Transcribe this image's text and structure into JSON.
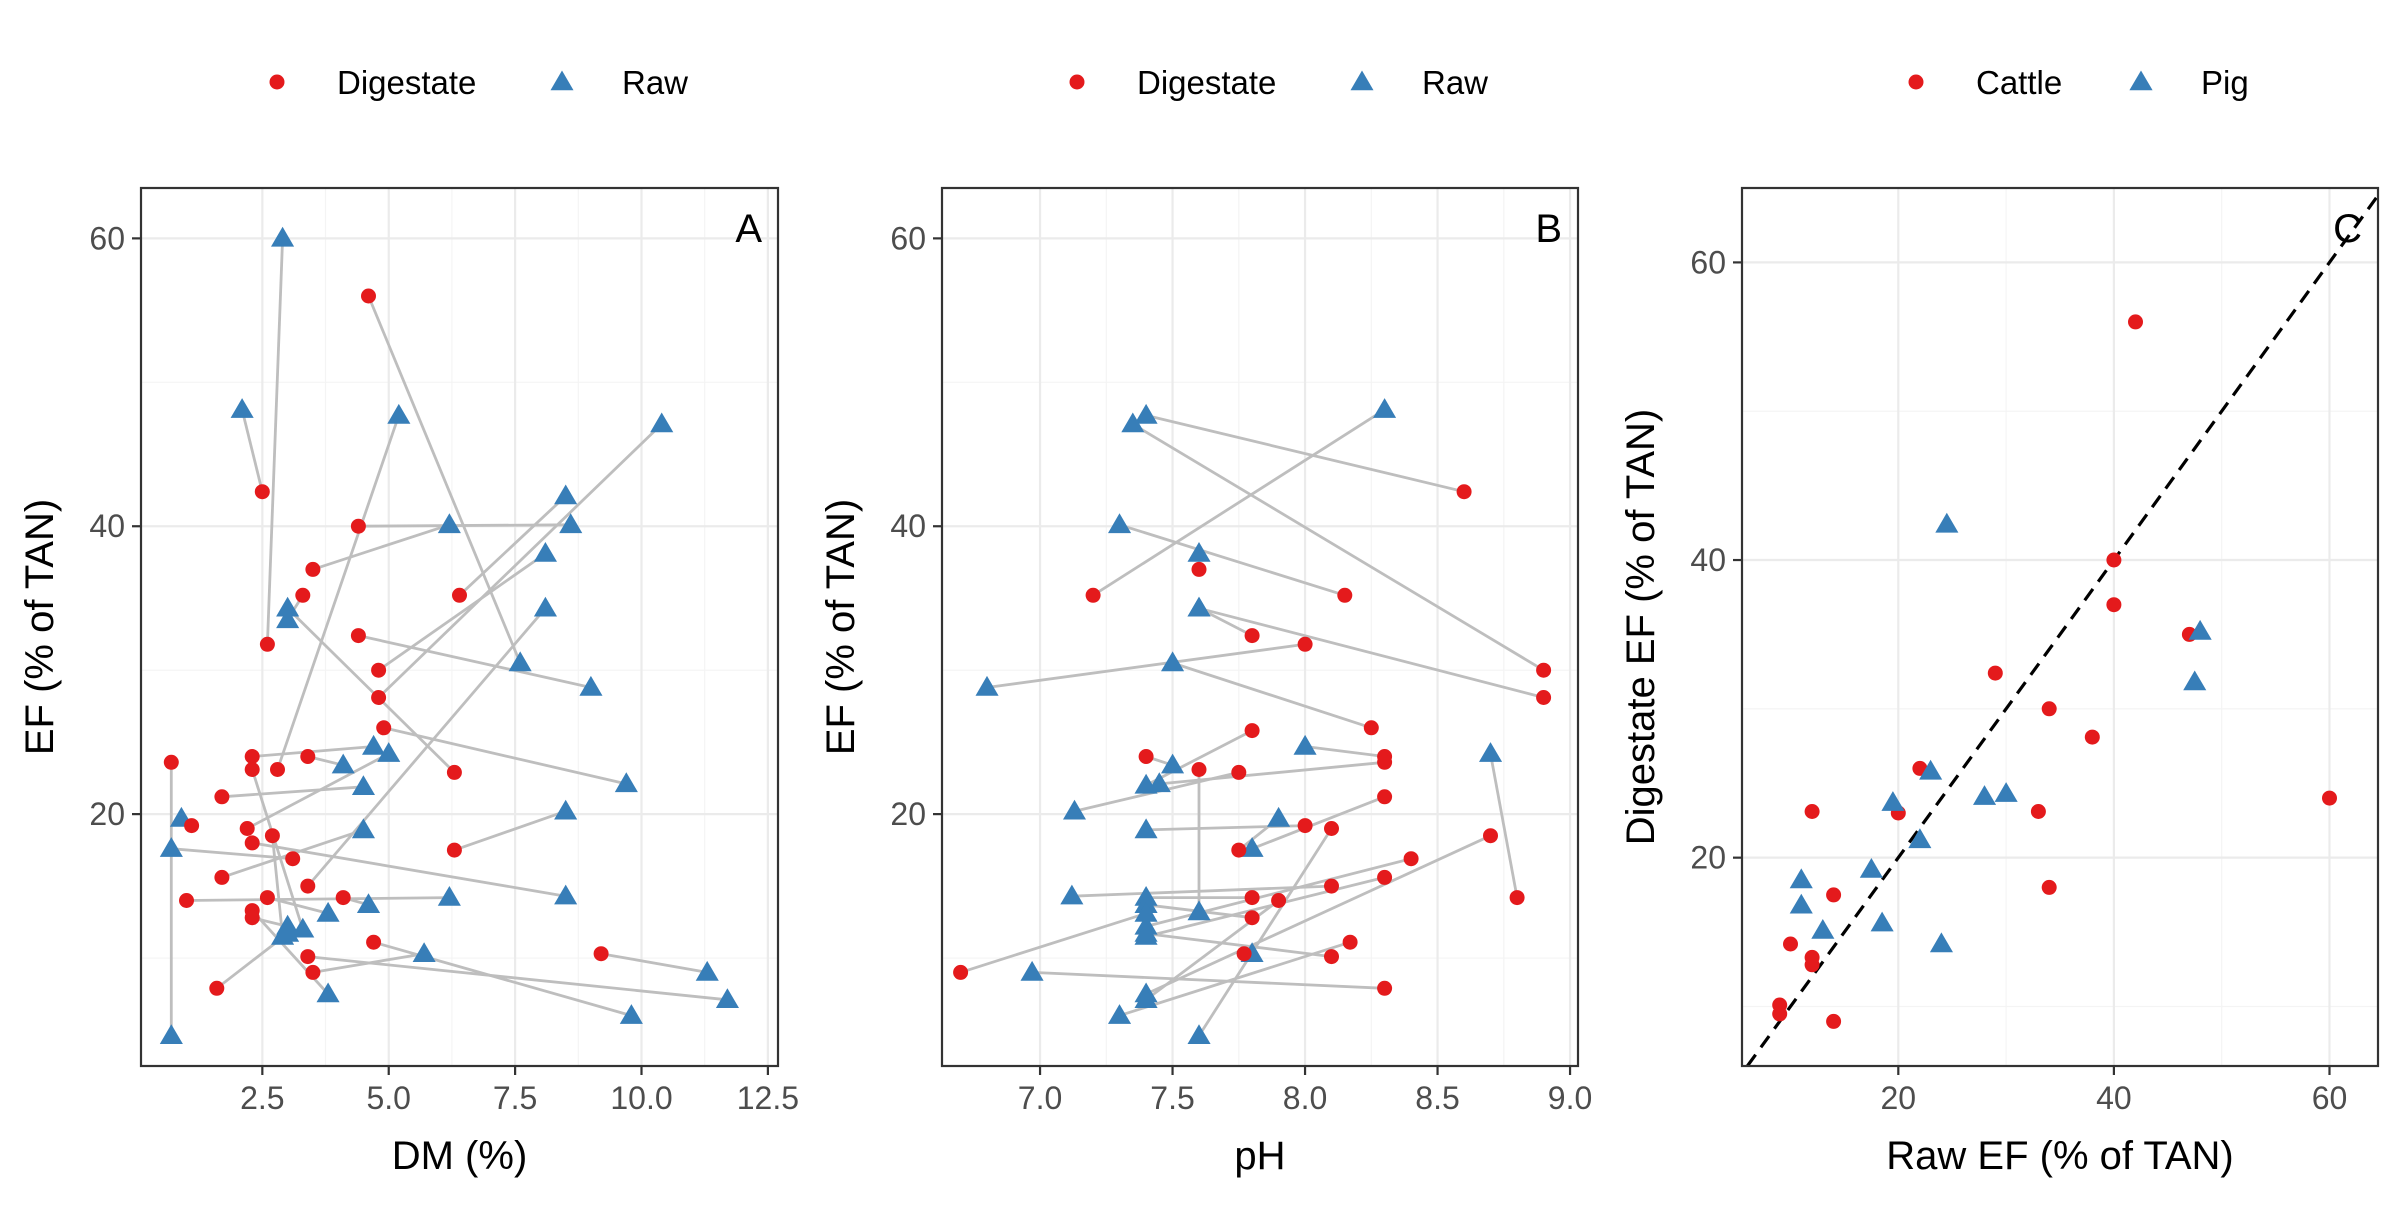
{
  "colors": {
    "red": "#e41a1c",
    "blue": "#377eb8",
    "line": "#bebebe"
  },
  "panels": [
    {
      "tag": "A",
      "xlabel": "DM (%)",
      "ylabel": "EF (% of TAN)",
      "xlim": [
        0.1,
        12.7
      ],
      "ylim": [
        2.5,
        63.5
      ],
      "xticks": [
        2.5,
        5.0,
        7.5,
        10.0,
        12.5
      ],
      "xtick_labels": [
        "2.5",
        "5.0",
        "7.5",
        "10.0",
        "12.5"
      ],
      "yticks": [
        20,
        40,
        60
      ],
      "ytick_labels": [
        "20",
        "40",
        "60"
      ],
      "legend": [
        {
          "label": "Digestate",
          "shape": "circle"
        },
        {
          "label": "Raw",
          "shape": "triangle"
        }
      ]
    },
    {
      "tag": "B",
      "xlabel": "pH",
      "ylabel": "EF (% of TAN)",
      "xlim": [
        6.63,
        9.03
      ],
      "ylim": [
        2.5,
        63.5
      ],
      "xticks": [
        7.0,
        7.5,
        8.0,
        8.5,
        9.0
      ],
      "xtick_labels": [
        "7.0",
        "7.5",
        "8.0",
        "8.5",
        "9.0"
      ],
      "yticks": [
        20,
        40,
        60
      ],
      "ytick_labels": [
        "20",
        "40",
        "60"
      ],
      "legend": [
        {
          "label": "Digestate",
          "shape": "circle"
        },
        {
          "label": "Raw",
          "shape": "triangle"
        }
      ]
    },
    {
      "tag": "C",
      "xlabel": "Raw EF (% of TAN)",
      "ylabel": "Digestate EF (% of TAN)",
      "xlim": [
        5.5,
        64.5
      ],
      "ylim": [
        6.0,
        65.0
      ],
      "xticks": [
        20,
        40,
        60
      ],
      "xtick_labels": [
        "20",
        "40",
        "60"
      ],
      "yticks": [
        20,
        40,
        60
      ],
      "ytick_labels": [
        "20",
        "40",
        "60"
      ],
      "legend": [
        {
          "label": "Cattle",
          "shape": "circle"
        },
        {
          "label": "Pig",
          "shape": "triangle"
        }
      ]
    }
  ],
  "chart_data": [
    {
      "type": "scatter",
      "panel": "A",
      "xlabel": "DM (%)",
      "ylabel": "EF (% of TAN)",
      "series": [
        {
          "name": "Digestate"
        },
        {
          "name": "Raw"
        }
      ],
      "pairs": [
        {
          "digestate": [
            4.6,
            56.0
          ],
          "raw": [
            7.6,
            30.5
          ]
        },
        {
          "digestate": [
            2.5,
            42.4
          ],
          "raw": [
            2.1,
            48.1
          ]
        },
        {
          "digestate": [
            4.4,
            40.0
          ],
          "raw": [
            8.6,
            40.1
          ]
        },
        {
          "digestate": [
            3.5,
            37.0
          ],
          "raw": [
            6.2,
            40.1
          ]
        },
        {
          "digestate": [
            6.4,
            35.2
          ],
          "raw": [
            8.5,
            42.1
          ]
        },
        {
          "digestate": [
            3.3,
            35.2
          ],
          "raw": [
            3.0,
            33.5
          ]
        },
        {
          "digestate": [
            4.4,
            32.4
          ],
          "raw": [
            9.0,
            28.8
          ]
        },
        {
          "digestate": [
            2.6,
            31.8
          ],
          "raw": [
            2.9,
            60.0
          ]
        },
        {
          "digestate": [
            4.8,
            30.0
          ],
          "raw": [
            8.1,
            38.1
          ]
        },
        {
          "digestate": [
            4.8,
            28.1
          ],
          "raw": [
            10.4,
            47.1
          ]
        },
        {
          "digestate": [
            4.9,
            26.0
          ],
          "raw": [
            9.7,
            22.1
          ]
        },
        {
          "digestate": [
            2.3,
            24.0
          ],
          "raw": [
            4.7,
            24.7
          ]
        },
        {
          "digestate": [
            3.4,
            24.0
          ],
          "raw": [
            4.1,
            23.4
          ]
        },
        {
          "digestate": [
            0.7,
            23.6
          ],
          "raw": [
            0.7,
            4.6
          ]
        },
        {
          "digestate": [
            2.3,
            23.1
          ],
          "raw": [
            3.3,
            12.0
          ]
        },
        {
          "digestate": [
            2.8,
            23.1
          ],
          "raw": [
            5.2,
            47.7
          ]
        },
        {
          "digestate": [
            6.3,
            22.9
          ],
          "raw": [
            3.0,
            34.3
          ]
        },
        {
          "digestate": [
            1.7,
            21.2
          ],
          "raw": [
            4.5,
            21.9
          ]
        },
        {
          "digestate": [
            2.2,
            19.0
          ],
          "raw": [
            5.0,
            24.2
          ]
        },
        {
          "digestate": [
            1.1,
            19.2
          ],
          "raw": [
            0.9,
            19.7
          ]
        },
        {
          "digestate": [
            2.7,
            18.5
          ],
          "raw": [
            2.9,
            11.5
          ]
        },
        {
          "digestate": [
            2.3,
            18.0
          ],
          "raw": [
            8.5,
            14.3
          ]
        },
        {
          "digestate": [
            3.1,
            16.9
          ],
          "raw": [
            0.7,
            17.6
          ]
        },
        {
          "digestate": [
            6.3,
            17.5
          ],
          "raw": [
            8.5,
            20.2
          ]
        },
        {
          "digestate": [
            1.7,
            15.6
          ],
          "raw": [
            4.5,
            18.9
          ]
        },
        {
          "digestate": [
            3.4,
            15.0
          ],
          "raw": [
            8.1,
            34.3
          ]
        },
        {
          "digestate": [
            2.6,
            14.2
          ],
          "raw": [
            3.8,
            13.1
          ]
        },
        {
          "digestate": [
            4.1,
            14.2
          ],
          "raw": [
            4.6,
            13.7
          ]
        },
        {
          "digestate": [
            1.0,
            14.0
          ],
          "raw": [
            6.2,
            14.2
          ]
        },
        {
          "digestate": [
            2.3,
            13.3
          ],
          "raw": [
            3.8,
            7.5
          ]
        },
        {
          "digestate": [
            2.3,
            12.8
          ],
          "raw": [
            3.0,
            12.2
          ]
        },
        {
          "digestate": [
            4.7,
            11.1
          ],
          "raw": [
            9.8,
            6.0
          ]
        },
        {
          "digestate": [
            3.4,
            10.1
          ],
          "raw": [
            11.7,
            7.1
          ]
        },
        {
          "digestate": [
            9.2,
            10.3
          ],
          "raw": [
            11.3,
            9.0
          ]
        },
        {
          "digestate": [
            3.5,
            9.0
          ],
          "raw": [
            5.7,
            10.3
          ]
        },
        {
          "digestate": [
            1.6,
            7.9
          ],
          "raw": [
            3.0,
            11.7
          ]
        }
      ]
    },
    {
      "type": "scatter",
      "panel": "B",
      "xlabel": "pH",
      "ylabel": "EF (% of TAN)",
      "series": [
        {
          "name": "Digestate"
        },
        {
          "name": "Raw"
        }
      ],
      "pairs": [
        {
          "digestate": [
            8.6,
            42.4
          ],
          "raw": [
            7.4,
            47.7
          ]
        },
        {
          "digestate": [
            7.2,
            35.2
          ],
          "raw": [
            8.3,
            48.1
          ]
        },
        {
          "digestate": [
            8.15,
            35.2
          ],
          "raw": [
            7.3,
            40.1
          ]
        },
        {
          "digestate": [
            7.6,
            37.0
          ],
          "raw": [
            7.6,
            38.1
          ]
        },
        {
          "digestate": [
            8.9,
            30.0
          ],
          "raw": [
            7.35,
            47.1
          ]
        },
        {
          "digestate": [
            8.9,
            28.1
          ],
          "raw": [
            7.6,
            34.3
          ]
        },
        {
          "digestate": [
            8.0,
            31.8
          ],
          "raw": [
            6.8,
            28.8
          ]
        },
        {
          "digestate": [
            7.8,
            32.4
          ],
          "raw": [
            7.6,
            34.3
          ]
        },
        {
          "digestate": [
            8.25,
            26.0
          ],
          "raw": [
            7.5,
            30.5
          ]
        },
        {
          "digestate": [
            8.3,
            24.0
          ],
          "raw": [
            8.0,
            24.7
          ]
        },
        {
          "digestate": [
            8.3,
            23.6
          ],
          "raw": [
            7.45,
            22.1
          ]
        },
        {
          "digestate": [
            7.8,
            25.8
          ],
          "raw": [
            7.4,
            22.0
          ]
        },
        {
          "digestate": [
            7.4,
            24.0
          ],
          "raw": [
            7.5,
            23.4
          ]
        },
        {
          "digestate": [
            8.3,
            21.2
          ],
          "raw": [
            7.8,
            17.6
          ]
        },
        {
          "digestate": [
            7.6,
            23.1
          ],
          "raw": [
            7.6,
            13.2
          ]
        },
        {
          "digestate": [
            7.75,
            22.9
          ],
          "raw": [
            7.13,
            20.2
          ]
        },
        {
          "digestate": [
            8.0,
            19.2
          ],
          "raw": [
            7.4,
            18.9
          ]
        },
        {
          "digestate": [
            8.1,
            19.0
          ],
          "raw": [
            7.6,
            4.6
          ]
        },
        {
          "digestate": [
            7.75,
            17.5
          ],
          "raw": [
            7.9,
            19.7
          ]
        },
        {
          "digestate": [
            8.7,
            18.5
          ],
          "raw": [
            7.4,
            7.5
          ]
        },
        {
          "digestate": [
            8.4,
            16.9
          ],
          "raw": [
            7.4,
            12.2
          ]
        },
        {
          "digestate": [
            8.3,
            15.6
          ],
          "raw": [
            7.4,
            11.5
          ]
        },
        {
          "digestate": [
            8.1,
            15.0
          ],
          "raw": [
            7.12,
            14.3
          ]
        },
        {
          "digestate": [
            7.8,
            14.2
          ],
          "raw": [
            7.4,
            14.2
          ]
        },
        {
          "digestate": [
            7.9,
            14.0
          ],
          "raw": [
            7.4,
            7.1
          ]
        },
        {
          "digestate": [
            8.8,
            14.2
          ],
          "raw": [
            8.7,
            24.2
          ]
        },
        {
          "digestate": [
            7.8,
            12.8
          ],
          "raw": [
            7.4,
            13.7
          ]
        },
        {
          "digestate": [
            8.17,
            11.1
          ],
          "raw": [
            7.3,
            6.0
          ]
        },
        {
          "digestate": [
            8.1,
            10.1
          ],
          "raw": [
            7.4,
            11.7
          ]
        },
        {
          "digestate": [
            7.77,
            10.3
          ],
          "raw": [
            7.8,
            10.3
          ]
        },
        {
          "digestate": [
            6.7,
            9.0
          ],
          "raw": [
            7.4,
            13.1
          ]
        },
        {
          "digestate": [
            8.3,
            7.9
          ],
          "raw": [
            6.97,
            9.0
          ]
        }
      ]
    },
    {
      "type": "scatter",
      "panel": "C",
      "xlabel": "Raw EF (% of TAN)",
      "ylabel": "Digestate EF (% of TAN)",
      "reference_line": "y = x",
      "series": [
        {
          "name": "Cattle",
          "points": [
            [
              42,
              56
            ],
            [
              40,
              40
            ],
            [
              40,
              37
            ],
            [
              47,
              35
            ],
            [
              29,
              32.4
            ],
            [
              34,
              30
            ],
            [
              38,
              28.1
            ],
            [
              22,
              26
            ],
            [
              33,
              23.1
            ],
            [
              60,
              24
            ],
            [
              20,
              23
            ],
            [
              12,
              23.1
            ],
            [
              34,
              18
            ],
            [
              14,
              17.5
            ],
            [
              10,
              14.2
            ],
            [
              12,
              13.3
            ],
            [
              12,
              12.8
            ],
            [
              9,
              10.1
            ],
            [
              9,
              9.5
            ],
            [
              14,
              9
            ]
          ]
        },
        {
          "name": "Pig",
          "points": [
            [
              24.5,
              42.4
            ],
            [
              48,
              35.2
            ],
            [
              47.5,
              31.8
            ],
            [
              23,
              25.8
            ],
            [
              28,
              24.1
            ],
            [
              30,
              24.3
            ],
            [
              19.5,
              23.7
            ],
            [
              22,
              21.2
            ],
            [
              17.5,
              19.2
            ],
            [
              11,
              18.5
            ],
            [
              11,
              16.8
            ],
            [
              13,
              15.1
            ],
            [
              18.5,
              15.6
            ],
            [
              24,
              14.2
            ]
          ]
        }
      ]
    }
  ]
}
